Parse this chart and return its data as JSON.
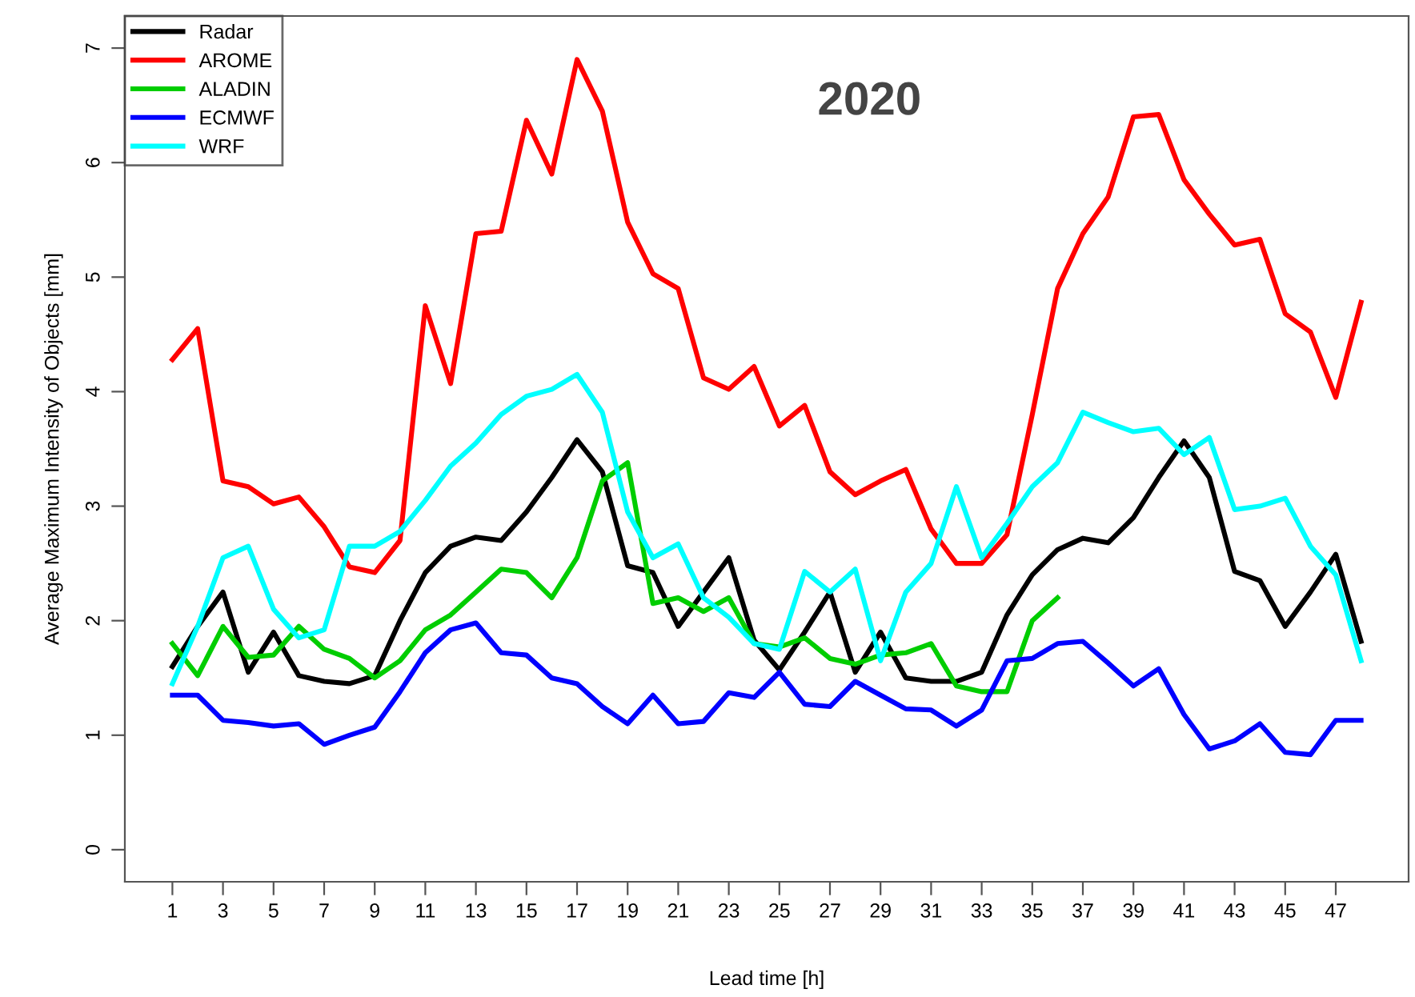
{
  "chart_data": {
    "type": "line",
    "title": "2020",
    "xlabel": "Lead time [h]",
    "ylabel": "Average Maximum Intensity of Objects [mm]",
    "x": [
      1,
      2,
      3,
      4,
      5,
      6,
      7,
      8,
      9,
      10,
      11,
      12,
      13,
      14,
      15,
      16,
      17,
      18,
      19,
      20,
      21,
      22,
      23,
      24,
      25,
      26,
      27,
      28,
      29,
      30,
      31,
      32,
      33,
      34,
      35,
      36,
      37,
      38,
      39,
      40,
      41,
      42,
      43,
      44,
      45,
      46,
      47,
      48
    ],
    "xlim": [
      -0.88,
      49.88
    ],
    "xticks": [
      1,
      3,
      5,
      7,
      9,
      11,
      13,
      15,
      17,
      19,
      21,
      23,
      25,
      27,
      29,
      31,
      33,
      35,
      37,
      39,
      41,
      43,
      45,
      47
    ],
    "ylim": [
      -0.28,
      7.28
    ],
    "yticks": [
      0,
      1,
      2,
      3,
      4,
      5,
      6,
      7
    ],
    "legend": "top left",
    "grid": false,
    "line_style": "solid",
    "marker": "none",
    "series": [
      {
        "name": "Radar",
        "color": "#000000",
        "values": [
          1.6,
          1.95,
          2.25,
          1.55,
          1.9,
          1.52,
          1.47,
          1.45,
          1.52,
          2.0,
          2.42,
          2.65,
          2.73,
          2.7,
          2.95,
          3.25,
          3.58,
          3.3,
          2.48,
          2.42,
          1.95,
          2.25,
          2.55,
          1.83,
          1.57,
          1.9,
          2.25,
          1.55,
          1.9,
          1.5,
          1.47,
          1.47,
          1.55,
          2.05,
          2.4,
          2.62,
          2.72,
          2.68,
          2.9,
          3.25,
          3.57,
          3.25,
          2.43,
          2.35,
          1.95,
          2.25,
          2.58,
          1.82
        ]
      },
      {
        "name": "AROME",
        "color": "#ff0000",
        "values": [
          4.28,
          4.55,
          3.22,
          3.17,
          3.02,
          3.08,
          2.82,
          2.47,
          2.42,
          2.7,
          4.75,
          4.07,
          5.38,
          5.4,
          6.37,
          5.9,
          6.9,
          6.45,
          5.48,
          5.03,
          4.9,
          4.12,
          4.02,
          4.22,
          3.7,
          3.88,
          3.3,
          3.1,
          3.22,
          3.32,
          2.8,
          2.5,
          2.5,
          2.75,
          3.8,
          4.9,
          5.38,
          5.7,
          6.4,
          6.42,
          5.85,
          5.55,
          5.28,
          5.33,
          4.68,
          4.52,
          3.95,
          4.78
        ]
      },
      {
        "name": "ALADIN",
        "color": "#00cd00",
        "values": [
          1.8,
          1.52,
          1.95,
          1.68,
          1.7,
          1.95,
          1.75,
          1.67,
          1.5,
          1.65,
          1.92,
          2.05,
          2.25,
          2.45,
          2.42,
          2.2,
          2.55,
          3.22,
          3.38,
          2.15,
          2.2,
          2.08,
          2.2,
          1.8,
          1.77,
          1.85,
          1.67,
          1.62,
          1.7,
          1.72,
          1.8,
          1.43,
          1.38,
          1.38,
          2.0,
          2.2,
          null,
          null,
          null,
          null,
          null,
          null,
          null,
          null,
          null,
          null,
          null,
          null
        ]
      },
      {
        "name": "ECMWF",
        "color": "#0000ff",
        "values": [
          1.35,
          1.35,
          1.13,
          1.11,
          1.08,
          1.1,
          0.92,
          1.0,
          1.07,
          1.38,
          1.72,
          1.92,
          1.98,
          1.72,
          1.7,
          1.5,
          1.45,
          1.25,
          1.1,
          1.35,
          1.1,
          1.12,
          1.37,
          1.33,
          1.55,
          1.27,
          1.25,
          1.47,
          1.35,
          1.23,
          1.22,
          1.08,
          1.22,
          1.65,
          1.67,
          1.8,
          1.82,
          1.63,
          1.43,
          1.58,
          1.18,
          0.88,
          0.95,
          1.1,
          0.85,
          0.83,
          1.13,
          1.13
        ]
      },
      {
        "name": "WRF",
        "color": "#00ffff",
        "values": [
          1.45,
          1.95,
          2.55,
          2.65,
          2.1,
          1.85,
          1.92,
          2.65,
          2.65,
          2.78,
          3.05,
          3.35,
          3.55,
          3.8,
          3.96,
          4.02,
          4.15,
          3.82,
          2.95,
          2.55,
          2.67,
          2.2,
          2.03,
          1.8,
          1.75,
          2.43,
          2.25,
          2.45,
          1.65,
          2.25,
          2.5,
          3.17,
          2.55,
          2.85,
          3.17,
          3.38,
          3.82,
          3.73,
          3.65,
          3.68,
          3.45,
          3.6,
          2.97,
          3.0,
          3.07,
          2.65,
          2.4,
          1.65
        ]
      }
    ]
  }
}
